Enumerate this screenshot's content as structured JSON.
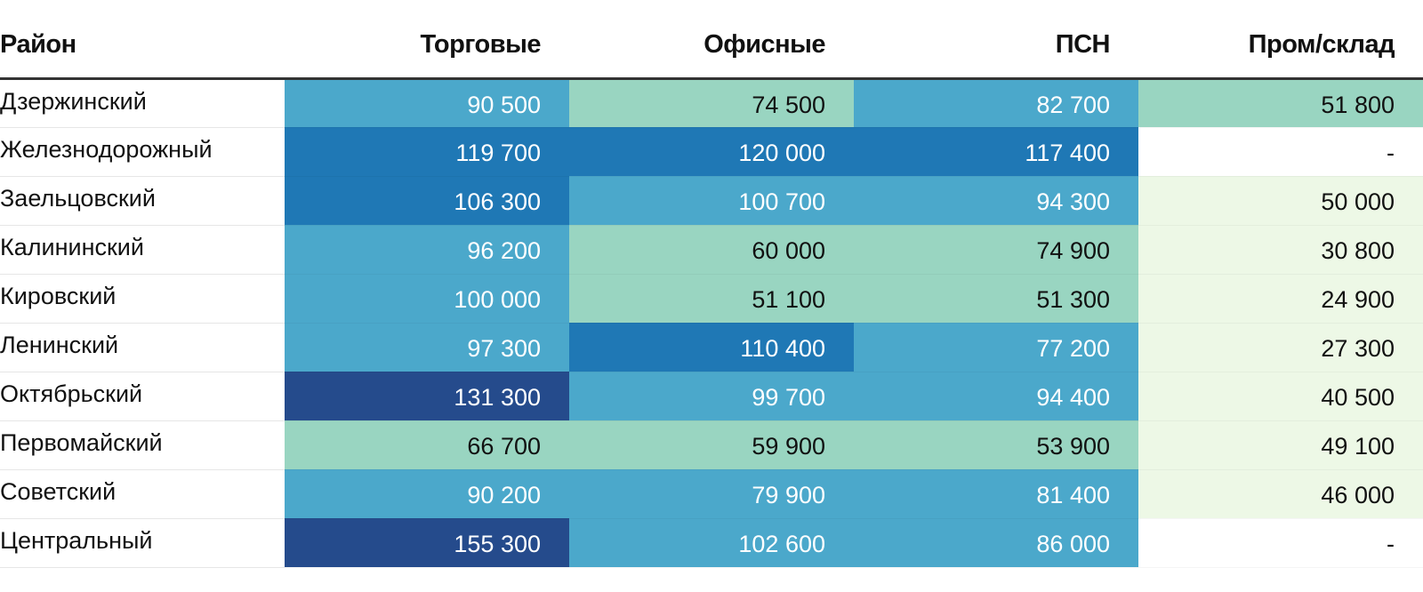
{
  "chart_data": {
    "type": "table",
    "columns": [
      "Район",
      "Торговые",
      "Офисные",
      "ПСН",
      "Пром/склад"
    ],
    "rows": [
      {
        "district": "Дзержинский",
        "values": [
          "90 500",
          "74 500",
          "82 700",
          "51 800"
        ]
      },
      {
        "district": "Железнодорожный",
        "values": [
          "119 700",
          "120 000",
          "117 400",
          "-"
        ]
      },
      {
        "district": "Заельцовский",
        "values": [
          "106 300",
          "100 700",
          "94 300",
          "50 000"
        ]
      },
      {
        "district": "Калининский",
        "values": [
          "96 200",
          "60 000",
          "74 900",
          "30 800"
        ]
      },
      {
        "district": "Кировский",
        "values": [
          "100 000",
          "51 100",
          "51 300",
          "24 900"
        ]
      },
      {
        "district": "Ленинский",
        "values": [
          "97 300",
          "110 400",
          "77 200",
          "27 300"
        ]
      },
      {
        "district": "Октябрьский",
        "values": [
          "131 300",
          "99 700",
          "94 400",
          "40 500"
        ]
      },
      {
        "district": "Первомайский",
        "values": [
          "66 700",
          "59 900",
          "53 900",
          "49 100"
        ]
      },
      {
        "district": "Советский",
        "values": [
          "90 200",
          "79 900",
          "81 400",
          "46 000"
        ]
      },
      {
        "district": "Центральный",
        "values": [
          "155 300",
          "102 600",
          "86 000",
          "-"
        ]
      }
    ],
    "color_scale": {
      "empty": "#ffffff",
      "bins": [
        {
          "max": 50000,
          "fill": "#edf8e6",
          "text": "#111111"
        },
        {
          "max": 75000,
          "fill": "#99d5c1",
          "text": "#111111"
        },
        {
          "max": 106000,
          "fill": "#4ba8cb",
          "text": "#ffffff"
        },
        {
          "max": 125000,
          "fill": "#1f78b5",
          "text": "#ffffff"
        },
        {
          "max": 1000000,
          "fill": "#254b8c",
          "text": "#ffffff"
        }
      ]
    }
  }
}
